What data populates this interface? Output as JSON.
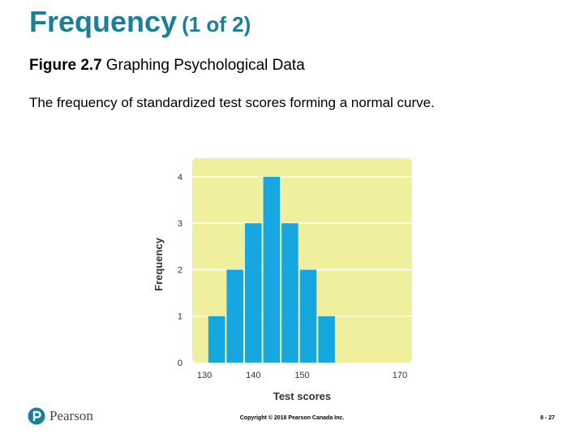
{
  "slide": {
    "title": "Frequency",
    "title_suffix": "(1 of 2)",
    "figure_number": "Figure 2.7",
    "figure_title": "Graphing Psychological Data",
    "description": "The frequency of standardized test scores forming a normal curve."
  },
  "chart_data": {
    "type": "bar",
    "title": "",
    "xlabel": "Test scores",
    "ylabel": "Frequency",
    "x_ticks": [
      130,
      140,
      150,
      170
    ],
    "y_ticks": [
      0,
      1,
      2,
      3,
      4
    ],
    "xlim": [
      127.5,
      172.5
    ],
    "ylim": [
      0,
      4.4
    ],
    "bins": [
      {
        "x": 132.5,
        "value": 1
      },
      {
        "x": 136.25,
        "value": 2
      },
      {
        "x": 140,
        "value": 3
      },
      {
        "x": 143.75,
        "value": 4
      },
      {
        "x": 147.5,
        "value": 3
      },
      {
        "x": 151.25,
        "value": 2
      },
      {
        "x": 155,
        "value": 1
      }
    ],
    "bin_width": 3.75,
    "grid": true,
    "colors": {
      "plot_bg": "#f0ef9e",
      "bar": "#16a7e0",
      "grid": "#ffffff"
    }
  },
  "footer": {
    "brand": "Pearson",
    "copyright": "Copyright © 2018 Pearson Canada Inc.",
    "page": "8 - 27"
  },
  "colors": {
    "title": "#1a7f99"
  }
}
